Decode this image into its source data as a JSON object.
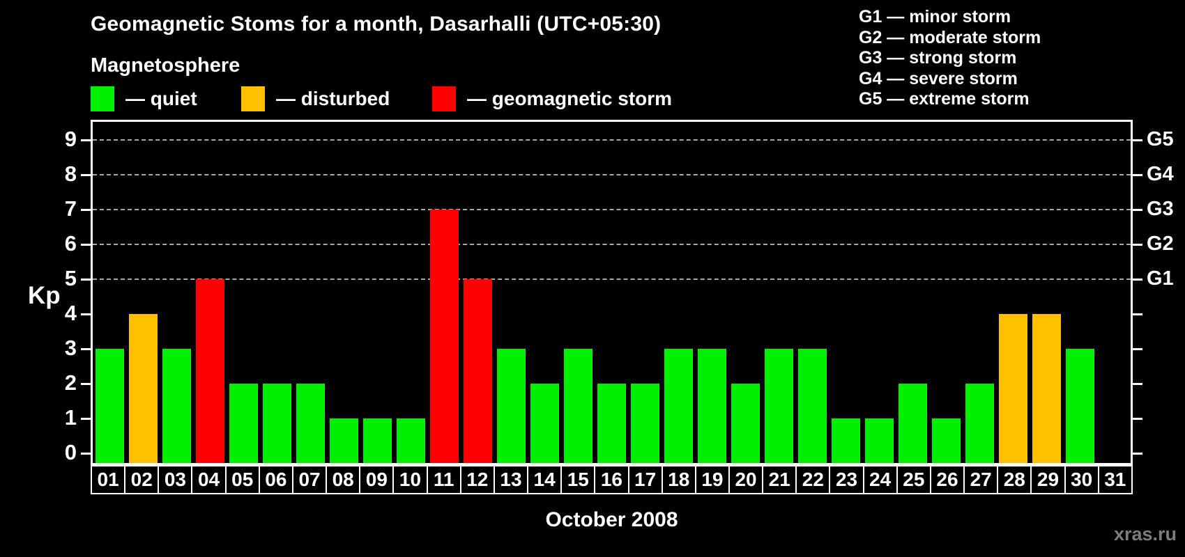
{
  "title": "Geomagnetic Stoms for a month, Dasarhalli (UTC+05:30)",
  "legend": {
    "heading": "Magnetosphere",
    "items": [
      {
        "key": "quiet",
        "label": "— quiet",
        "color": "#00f000"
      },
      {
        "key": "disturbed",
        "label": "— disturbed",
        "color": "#ffc000"
      },
      {
        "key": "storm",
        "label": "— geomagnetic storm",
        "color": "#ff0000"
      }
    ]
  },
  "storm_scale_legend": [
    "G1 — minor storm",
    "G2 — moderate storm",
    "G3 — strong storm",
    "G4 — severe storm",
    "G5 — extreme storm"
  ],
  "watermark": "xras.ru",
  "chart_data": {
    "type": "bar",
    "title": "Geomagnetic Stoms for a month, Dasarhalli (UTC+05:30)",
    "subtitle": "Magnetosphere",
    "xlabel": "October 2008",
    "ylabel": "Kp",
    "ylim": [
      0,
      9
    ],
    "y_ticks": [
      0,
      1,
      2,
      3,
      4,
      5,
      6,
      7,
      8,
      9
    ],
    "grid": "horizontal dashed lines at Kp 5-9 only",
    "legend_position": "top",
    "categories": [
      "01",
      "02",
      "03",
      "04",
      "05",
      "06",
      "07",
      "08",
      "09",
      "10",
      "11",
      "12",
      "13",
      "14",
      "15",
      "16",
      "17",
      "18",
      "19",
      "20",
      "21",
      "22",
      "23",
      "24",
      "25",
      "26",
      "27",
      "28",
      "29",
      "30",
      "31"
    ],
    "values": [
      3,
      4,
      3,
      5,
      2,
      2,
      2,
      1,
      1,
      1,
      7,
      5,
      3,
      2,
      3,
      2,
      2,
      3,
      3,
      2,
      3,
      3,
      1,
      1,
      2,
      1,
      2,
      4,
      4,
      3,
      null
    ],
    "value_colors": [
      "#00f000",
      "#ffc000",
      "#00f000",
      "#ff0000",
      "#00f000",
      "#00f000",
      "#00f000",
      "#00f000",
      "#00f000",
      "#00f000",
      "#ff0000",
      "#ff0000",
      "#00f000",
      "#00f000",
      "#00f000",
      "#00f000",
      "#00f000",
      "#00f000",
      "#00f000",
      "#00f000",
      "#00f000",
      "#00f000",
      "#00f000",
      "#00f000",
      "#00f000",
      "#00f000",
      "#00f000",
      "#ffc000",
      "#ffc000",
      "#00f000",
      null
    ],
    "color_rule": {
      "quiet_kp_0_3": "#00f000",
      "disturbed_kp_4": "#ffc000",
      "storm_kp_5_9": "#ff0000"
    },
    "right_axis": {
      "labels": [
        "G1",
        "G2",
        "G3",
        "G4",
        "G5"
      ],
      "at_kp": [
        5,
        6,
        7,
        8,
        9
      ]
    }
  },
  "colors": {
    "background": "#000000",
    "axis": "#ffffff",
    "gridline": "#a9a9a9",
    "text": "#ffffff",
    "watermark": "#7d7d7d"
  }
}
